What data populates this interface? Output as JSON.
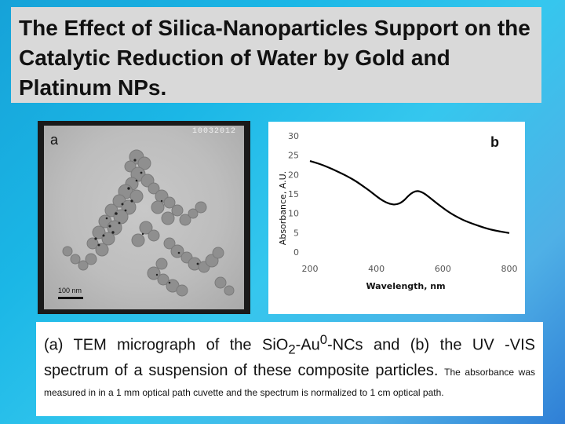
{
  "slide": {
    "title": "The Effect of Silica-Nanoparticles Support on the Catalytic Reduction of Water by Gold and Platinum NPs."
  },
  "tem": {
    "panel_label": "a",
    "image_code": "10032012",
    "scale_label": "100 nm"
  },
  "caption": {
    "part1": "(a) TEM micrograph of the SiO",
    "sub2": "2",
    "part2": "-Au",
    "sup0": "0",
    "part3": "-NCs and (b) the UV -VIS spectrum of a suspension of these composite particles.",
    "note": "The absorbance was measured in in a 1 mm optical path cuvette and the spectrum is normalized to 1 cm optical path."
  },
  "chart_data": {
    "type": "line",
    "panel_label": "b",
    "xlabel": "Wavelength, nm",
    "ylabel": "Absorbance, A.U.",
    "xlim": [
      200,
      800
    ],
    "ylim": [
      0,
      30
    ],
    "xticks": [
      200,
      400,
      600,
      800
    ],
    "yticks": [
      0,
      5,
      10,
      15,
      20,
      25,
      30
    ],
    "grid": false,
    "line_color": "#000000",
    "series": [
      {
        "x": [
          200,
          220,
          240,
          260,
          280,
          300,
          320,
          340,
          360,
          380,
          400,
          420,
          440,
          460,
          480,
          500,
          520,
          540,
          560,
          580,
          600,
          620,
          640,
          660,
          680,
          700,
          720,
          740,
          760,
          780,
          800
        ],
        "values": [
          23.5,
          23.0,
          22.4,
          21.7,
          20.9,
          20.1,
          19.2,
          18.2,
          17.0,
          15.8,
          14.4,
          13.2,
          12.4,
          12.2,
          13.0,
          14.9,
          15.9,
          15.4,
          14.1,
          12.7,
          11.4,
          10.2,
          9.2,
          8.3,
          7.6,
          7.0,
          6.4,
          5.9,
          5.5,
          5.2,
          4.9
        ]
      }
    ]
  }
}
